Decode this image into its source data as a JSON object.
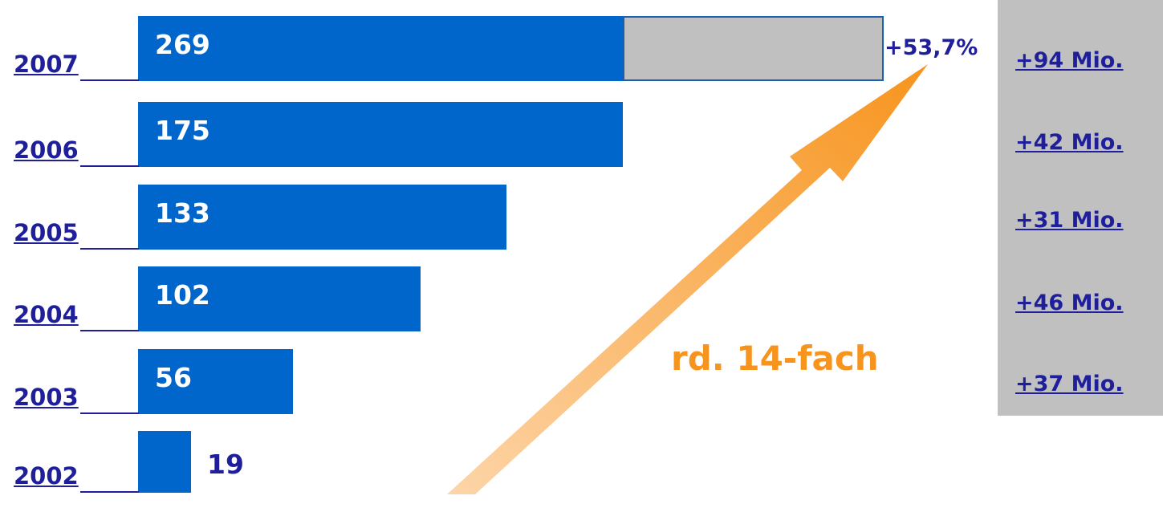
{
  "chart_data": {
    "type": "bar",
    "orientation": "horizontal",
    "categories": [
      "2007",
      "2006",
      "2005",
      "2004",
      "2003",
      "2002"
    ],
    "values": [
      269,
      175,
      133,
      102,
      56,
      19
    ],
    "increments": [
      "+94 Mio.",
      "+42 Mio.",
      "+31 Mio.",
      "+46 Mio.",
      "+37 Mio."
    ],
    "increment_2007_percent": "+53,7%",
    "growth_annotation": "rd. 14-fach",
    "xlim": [
      0,
      269
    ]
  },
  "colors": {
    "bar": "#0066cc",
    "increment_bar": "#c0c0c0",
    "label": "#1f1f9c",
    "arrow_start": "#fdd5a8",
    "arrow_end": "#f7941d"
  }
}
